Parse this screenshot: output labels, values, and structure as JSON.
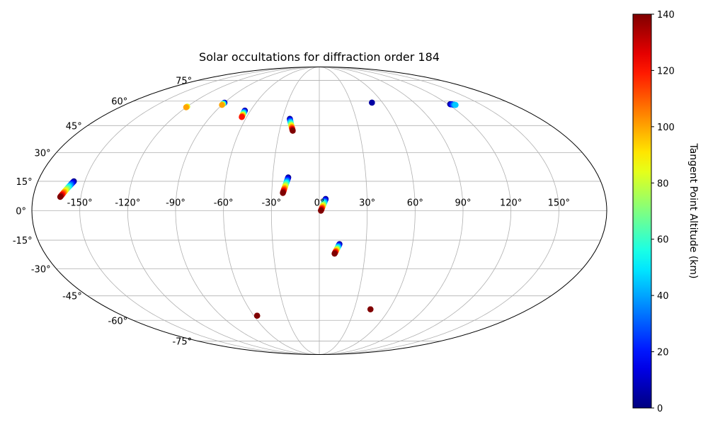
{
  "chart_data": {
    "type": "scatter",
    "projection": "mollweide",
    "title": "Solar occultations for diffraction order 184",
    "x_tick_labels": [
      "-150°",
      "-120°",
      "-90°",
      "-60°",
      "-30°",
      "0°",
      "30°",
      "60°",
      "90°",
      "120°",
      "150°"
    ],
    "x_ticks": [
      -150,
      -120,
      -90,
      -60,
      -30,
      0,
      30,
      60,
      90,
      120,
      150
    ],
    "y_tick_labels": [
      "-75°",
      "-60°",
      "-45°",
      "-30°",
      "-15°",
      "0°",
      "15°",
      "30°",
      "45°",
      "60°",
      "75°"
    ],
    "y_ticks": [
      -75,
      -60,
      -45,
      -30,
      -15,
      0,
      15,
      30,
      45,
      60,
      75
    ],
    "grid": true,
    "colorbar": {
      "label": "Tangent Point Altitude (km)",
      "range": [
        0,
        140
      ],
      "ticks": [
        0,
        20,
        40,
        60,
        80,
        100,
        120,
        140
      ],
      "tick_labels": [
        "0",
        "20",
        "40",
        "60",
        "80",
        "100",
        "120",
        "140"
      ],
      "colormap": "jet"
    },
    "series": [
      {
        "lon_start": -157,
        "lat_start": 15,
        "lon_end": -163,
        "lat_end": 7,
        "alt_start": 0,
        "alt_end": 140
      },
      {
        "lon_start": -20,
        "lat_start": 17,
        "lon_end": -23,
        "lat_end": 9,
        "alt_start": 0,
        "alt_end": 140
      },
      {
        "lon_start": 4,
        "lat_start": 6,
        "lon_end": 1,
        "lat_end": 0,
        "alt_start": 0,
        "alt_end": 140
      },
      {
        "lon_start": 13,
        "lat_start": -17,
        "lon_end": 10,
        "lat_end": -22,
        "alt_start": 0,
        "alt_end": 140
      },
      {
        "lon_start": -24,
        "lat_start": 49,
        "lon_end": -20,
        "lat_end": 42,
        "alt_start": 0,
        "alt_end": 140
      },
      {
        "lon_start": -65,
        "lat_start": 54,
        "lon_end": -64,
        "lat_end": 50,
        "alt_start": 0,
        "alt_end": 120
      },
      {
        "lon_start": -90,
        "lat_start": 59,
        "lon_end": -90,
        "lat_end": 57.5,
        "alt_start": 0,
        "alt_end": 100
      },
      {
        "lon_start": -120,
        "lat_start": 56.5,
        "lon_end": -120,
        "lat_end": 56,
        "alt_start": 80,
        "alt_end": 100
      },
      {
        "lon_start": 50,
        "lat_start": 59,
        "lon_end": 50,
        "lat_end": 59,
        "alt_start": 0,
        "alt_end": 5
      },
      {
        "lon_start": 122,
        "lat_start": 58,
        "lon_end": 126,
        "lat_end": 57.5,
        "alt_start": 0,
        "alt_end": 45
      },
      {
        "lon_start": 44,
        "lat_start": -53,
        "lon_end": 44,
        "lat_end": -53,
        "alt_start": 135,
        "alt_end": 140
      },
      {
        "lon_start": -57,
        "lat_start": -57,
        "lon_end": -57,
        "lat_end": -57,
        "alt_start": 135,
        "alt_end": 140
      }
    ]
  }
}
